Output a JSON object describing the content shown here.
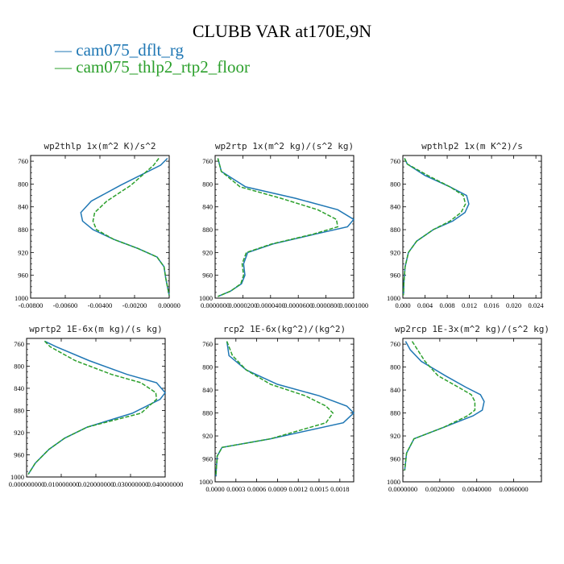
{
  "title": "CLUBB VAR at170E,9N",
  "legend": [
    {
      "label": "cam075_dflt_rg",
      "color": "#1f77b4",
      "dash": "solid"
    },
    {
      "label": "cam075_thlp2_rtp2_floor",
      "color": "#2ca02c",
      "dash": "dashed"
    }
  ],
  "chart_data": [
    {
      "type": "line",
      "title": "wp2thlp  1x(m^2 K)/s^2",
      "xlim": [
        -0.008,
        0.0
      ],
      "ylim": [
        1000,
        750
      ],
      "xticks": [
        -0.008,
        -0.006,
        -0.004,
        -0.002,
        0.0
      ],
      "xtick_labels": [
        "-0.00800",
        "-0.00600",
        "-0.00400",
        "-0.00200",
        "0.00000"
      ],
      "yticks": [
        760,
        800,
        840,
        880,
        920,
        960,
        1000
      ],
      "series": [
        {
          "name": "cam075_dflt_rg",
          "x": [
            -0.0001,
            -0.0005,
            -0.0028,
            -0.0045,
            -0.0051,
            -0.005,
            -0.0044,
            -0.0032,
            -0.0018,
            -0.0007,
            -0.0003,
            -0.0002,
            -0.0001,
            0.0
          ],
          "y": [
            755,
            767,
            802,
            830,
            850,
            865,
            880,
            897,
            913,
            928,
            945,
            965,
            980,
            995
          ]
        },
        {
          "name": "cam075_thlp2_rtp2_floor",
          "x": [
            -0.0006,
            -0.0009,
            -0.0022,
            -0.0036,
            -0.0043,
            -0.0044,
            -0.0042,
            -0.0032,
            -0.0018,
            -0.0007,
            -0.0003,
            -0.0002,
            -0.0001,
            0.0
          ],
          "y": [
            755,
            767,
            802,
            830,
            850,
            865,
            880,
            897,
            913,
            928,
            945,
            965,
            980,
            995
          ]
        }
      ]
    },
    {
      "type": "line",
      "title": "wp2rtp  1x(m^2 kg)/(s^2 kg)",
      "xlim": [
        0.0,
        0.0001
      ],
      "ylim": [
        1000,
        750
      ],
      "xticks": [
        0.0,
        2e-05,
        4e-05,
        6e-05,
        8e-05,
        0.0001
      ],
      "xtick_labels": [
        "0.0000000",
        "0.0000200",
        "0.0000400",
        "0.0000600",
        "0.0000800",
        "0.0001000"
      ],
      "yticks": [
        760,
        800,
        840,
        880,
        920,
        960,
        1000
      ],
      "series": [
        {
          "name": "cam075_dflt_rg",
          "x": [
            2e-06,
            4.5e-06,
            2.2e-05,
            5.8e-05,
            8.85e-05,
            0.0001,
            9.55e-05,
            7.2e-05,
            4.2e-05,
            2.35e-05,
            2.05e-05,
            2.15e-05,
            1.9e-05,
            1.1e-05,
            2e-06
          ],
          "y": [
            755,
            778,
            805,
            825,
            845,
            862,
            875,
            888,
            905,
            920,
            940,
            960,
            975,
            988,
            997
          ]
        },
        {
          "name": "cam075_thlp2_rtp2_floor",
          "x": [
            2e-06,
            4.5e-06,
            1.8e-05,
            4.75e-05,
            7.4e-05,
            8.75e-05,
            8.85e-05,
            7.05e-05,
            4.1e-05,
            2.25e-05,
            1.95e-05,
            2.05e-05,
            1.85e-05,
            1.1e-05,
            2e-06
          ],
          "y": [
            755,
            778,
            805,
            825,
            845,
            862,
            875,
            888,
            905,
            920,
            940,
            960,
            975,
            988,
            997
          ]
        }
      ]
    },
    {
      "type": "line",
      "title": "wpthlp2  1x(m K^2)/s",
      "xlim": [
        0.0,
        0.025
      ],
      "ylim": [
        1000,
        750
      ],
      "xticks": [
        0.0,
        0.004,
        0.008,
        0.012,
        0.016,
        0.02,
        0.024
      ],
      "xtick_labels": [
        "0.000",
        "0.004",
        "0.008",
        "0.012",
        "0.016",
        "0.020",
        "0.024"
      ],
      "yticks": [
        760,
        800,
        840,
        880,
        920,
        960,
        1000
      ],
      "series": [
        {
          "name": "cam075_dflt_rg",
          "x": [
            0.0003,
            0.0008,
            0.004,
            0.0085,
            0.0115,
            0.0119,
            0.0112,
            0.009,
            0.0055,
            0.0025,
            0.001,
            0.0004,
            0.0002,
            0.0001
          ],
          "y": [
            755,
            765,
            785,
            805,
            820,
            835,
            850,
            865,
            880,
            900,
            920,
            945,
            970,
            995
          ]
        },
        {
          "name": "cam075_thlp2_rtp2_floor",
          "x": [
            0.0003,
            0.0008,
            0.0045,
            0.0085,
            0.0109,
            0.0113,
            0.0105,
            0.0085,
            0.0055,
            0.0025,
            0.001,
            0.0004,
            0.0002,
            0.0001
          ],
          "y": [
            755,
            765,
            785,
            805,
            820,
            835,
            850,
            865,
            880,
            900,
            920,
            945,
            970,
            995
          ]
        }
      ]
    },
    {
      "type": "line",
      "title": "wprtp2  1E-6x(m kg)/(s kg)",
      "xlim": [
        0.0,
        0.04
      ],
      "ylim": [
        1000,
        750
      ],
      "xticks": [
        0.0,
        0.01,
        0.02,
        0.03,
        0.04
      ],
      "xtick_labels": [
        "0.000000000",
        "0.010000000",
        "0.020000000",
        "0.030000000",
        "0.040000000"
      ],
      "yticks": [
        760,
        800,
        840,
        880,
        920,
        960,
        1000
      ],
      "series": [
        {
          "name": "cam075_dflt_rg",
          "x": [
            0.0052,
            0.0085,
            0.018,
            0.029,
            0.0375,
            0.04,
            0.0385,
            0.0305,
            0.0175,
            0.011,
            0.0065,
            0.0025,
            0.0005
          ],
          "y": [
            755,
            765,
            790,
            815,
            830,
            848,
            860,
            885,
            910,
            930,
            950,
            975,
            995
          ]
        },
        {
          "name": "cam075_thlp2_rtp2_floor",
          "x": [
            0.0052,
            0.0068,
            0.014,
            0.0245,
            0.033,
            0.0373,
            0.0375,
            0.033,
            0.0175,
            0.011,
            0.0065,
            0.0025,
            0.0005
          ],
          "y": [
            755,
            765,
            790,
            815,
            830,
            848,
            860,
            885,
            910,
            930,
            950,
            975,
            995
          ]
        }
      ]
    },
    {
      "type": "line",
      "title": "rcp2  1E-6x(kg^2)/(kg^2)",
      "xlim": [
        0.0,
        0.002
      ],
      "ylim": [
        1000,
        750
      ],
      "xticks": [
        0.0,
        0.0003,
        0.0006,
        0.0009,
        0.0012,
        0.0015,
        0.0018
      ],
      "xtick_labels": [
        "0.0000",
        "0.0003",
        "0.0006",
        "0.0009",
        "0.0012",
        "0.0015",
        "0.0018"
      ],
      "yticks": [
        760,
        800,
        840,
        880,
        920,
        960,
        1000
      ],
      "series": [
        {
          "name": "cam075_dflt_rg",
          "x": [
            0.00017,
            0.0002,
            0.00045,
            0.0009,
            0.0015,
            0.0019,
            0.002,
            0.00185,
            0.0008,
            0.0001,
            3e-05,
            1e-05
          ],
          "y": [
            755,
            780,
            805,
            830,
            850,
            868,
            880,
            897,
            925,
            940,
            955,
            990
          ]
        },
        {
          "name": "cam075_thlp2_rtp2_floor",
          "x": [
            0.00017,
            0.00025,
            0.00045,
            0.0008,
            0.0013,
            0.0016,
            0.0017,
            0.0016,
            0.0008,
            0.0001,
            3e-05,
            1e-05
          ],
          "y": [
            755,
            780,
            805,
            830,
            850,
            868,
            880,
            897,
            925,
            940,
            955,
            990
          ]
        }
      ]
    },
    {
      "type": "line",
      "title": "wp2rcp  1E-3x(m^2 kg)/(s^2 kg)",
      "xlim": [
        0.0,
        0.0075
      ],
      "ylim": [
        1000,
        750
      ],
      "xticks": [
        0.0,
        0.002,
        0.004,
        0.006
      ],
      "xtick_labels": [
        "0.0000000",
        "0.0020000",
        "0.0040000",
        "0.0060000"
      ],
      "yticks": [
        760,
        800,
        840,
        880,
        920,
        960,
        1000
      ],
      "series": [
        {
          "name": "cam075_dflt_rg",
          "x": [
            0.00015,
            0.0004,
            0.001,
            0.0023,
            0.0034,
            0.0042,
            0.0044,
            0.0043,
            0.0038,
            0.0022,
            0.0006,
            0.0002,
            0.0001
          ],
          "y": [
            755,
            770,
            790,
            815,
            835,
            848,
            860,
            875,
            885,
            905,
            925,
            950,
            980
          ]
        },
        {
          "name": "cam075_thlp2_rtp2_floor",
          "x": [
            0.0005,
            0.0008,
            0.0012,
            0.0019,
            0.003,
            0.0037,
            0.0039,
            0.0039,
            0.0035,
            0.0022,
            0.0006,
            0.0002,
            0.0001
          ],
          "y": [
            755,
            770,
            790,
            815,
            835,
            848,
            860,
            875,
            885,
            905,
            925,
            950,
            980
          ]
        }
      ]
    }
  ]
}
